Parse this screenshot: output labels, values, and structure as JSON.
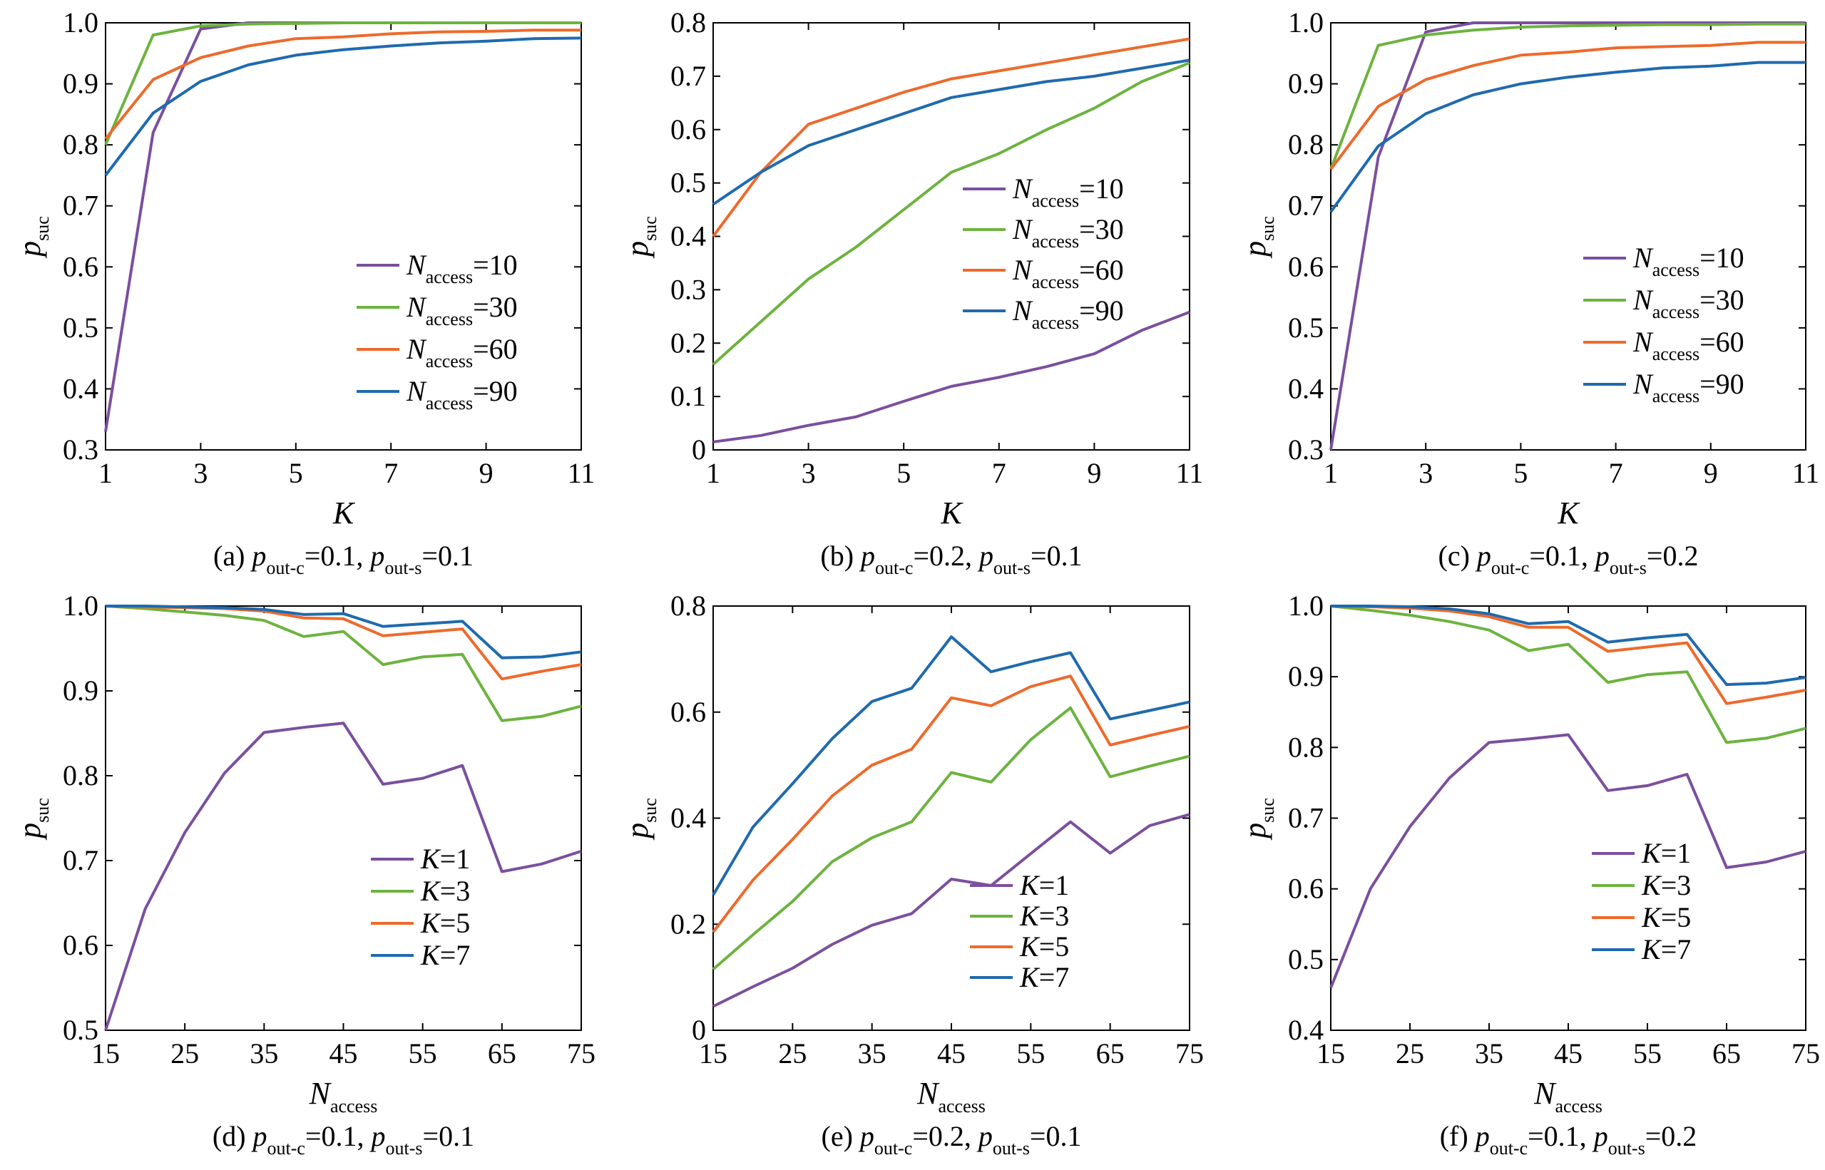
{
  "colors": {
    "purple": "#7B4F9E",
    "green": "#6DB33F",
    "orange": "#EE6A2C",
    "blue": "#1F6AAE"
  },
  "chart_data": [
    {
      "id": "a",
      "type": "line",
      "caption": {
        "prefix": "(a) ",
        "p1": "p",
        "s1": "out-c",
        "v1": "=0.1, ",
        "p2": "p",
        "s2": "out-s",
        "v2": "=0.1"
      },
      "xlabel": {
        "main": "K",
        "sub": ""
      },
      "ylabel": {
        "main": "p",
        "sub": "suc"
      },
      "xlim": [
        1,
        11
      ],
      "ylim": [
        0.3,
        1.0
      ],
      "xticks": [
        1,
        3,
        5,
        7,
        9,
        11
      ],
      "xtick_labels": [
        "1",
        "3",
        "5",
        "7",
        "9",
        "11"
      ],
      "yticks": [
        0.3,
        0.4,
        0.5,
        0.6,
        0.7,
        0.8,
        0.9,
        1.0
      ],
      "ytick_labels": [
        "0.3",
        "0.4",
        "0.5",
        "0.6",
        "0.7",
        "0.8",
        "0.9",
        "1.0"
      ],
      "legend": {
        "placement": "lower-right",
        "label_main": "N",
        "label_sub": "access"
      },
      "x": [
        1,
        2,
        3,
        4,
        5,
        6,
        7,
        8,
        9,
        10,
        11
      ],
      "series": [
        {
          "name": "=10",
          "color": "#7B4F9E",
          "values": [
            0.33,
            0.82,
            0.99,
            1.0,
            1.0,
            1.0,
            1.0,
            1.0,
            1.0,
            1.0,
            1.0
          ]
        },
        {
          "name": "=30",
          "color": "#6DB33F",
          "values": [
            0.8,
            0.98,
            0.995,
            0.998,
            0.999,
            1.0,
            1.0,
            1.0,
            1.0,
            1.0,
            1.0
          ]
        },
        {
          "name": "=60",
          "color": "#EE6A2C",
          "values": [
            0.81,
            0.907,
            0.943,
            0.962,
            0.974,
            0.977,
            0.982,
            0.985,
            0.986,
            0.988,
            0.988
          ]
        },
        {
          "name": "=90",
          "color": "#1F6AAE",
          "values": [
            0.75,
            0.852,
            0.904,
            0.931,
            0.947,
            0.956,
            0.962,
            0.967,
            0.97,
            0.974,
            0.975
          ]
        }
      ]
    },
    {
      "id": "b",
      "type": "line",
      "caption": {
        "prefix": "(b) ",
        "p1": "p",
        "s1": "out-c",
        "v1": "=0.2, ",
        "p2": "p",
        "s2": "out-s",
        "v2": "=0.1"
      },
      "xlabel": {
        "main": "K",
        "sub": ""
      },
      "ylabel": {
        "main": "p",
        "sub": "suc"
      },
      "xlim": [
        1,
        11
      ],
      "ylim": [
        0,
        0.8
      ],
      "xticks": [
        1,
        3,
        5,
        7,
        9,
        11
      ],
      "xtick_labels": [
        "1",
        "3",
        "5",
        "7",
        "9",
        "11"
      ],
      "yticks": [
        0,
        0.1,
        0.2,
        0.3,
        0.4,
        0.5,
        0.6,
        0.7,
        0.8
      ],
      "ytick_labels": [
        "0",
        "0.1",
        "0.2",
        "0.3",
        "0.4",
        "0.5",
        "0.6",
        "0.7",
        "0.8"
      ],
      "legend": {
        "placement": "center-right",
        "label_main": "N",
        "label_sub": "access"
      },
      "x": [
        1,
        2,
        3,
        4,
        5,
        6,
        7,
        8,
        9,
        10,
        11
      ],
      "series": [
        {
          "name": "=10",
          "color": "#7B4F9E",
          "values": [
            0.015,
            0.027,
            0.046,
            0.062,
            0.091,
            0.119,
            0.136,
            0.156,
            0.18,
            0.224,
            0.258
          ]
        },
        {
          "name": "=30",
          "color": "#6DB33F",
          "values": [
            0.16,
            0.24,
            0.32,
            0.38,
            0.45,
            0.52,
            0.555,
            0.6,
            0.64,
            0.69,
            0.725
          ]
        },
        {
          "name": "=60",
          "color": "#EE6A2C",
          "values": [
            0.4,
            0.52,
            0.61,
            0.64,
            0.67,
            0.695,
            0.71,
            0.725,
            0.74,
            0.755,
            0.77
          ]
        },
        {
          "name": "=90",
          "color": "#1F6AAE",
          "values": [
            0.46,
            0.52,
            0.57,
            0.6,
            0.63,
            0.66,
            0.675,
            0.69,
            0.7,
            0.715,
            0.73
          ]
        }
      ]
    },
    {
      "id": "c",
      "type": "line",
      "caption": {
        "prefix": "(c) ",
        "p1": "p",
        "s1": "out-c",
        "v1": "=0.1, ",
        "p2": "p",
        "s2": "out-s",
        "v2": "=0.2"
      },
      "xlabel": {
        "main": "K",
        "sub": ""
      },
      "ylabel": {
        "main": "p",
        "sub": "suc"
      },
      "xlim": [
        1,
        11
      ],
      "ylim": [
        0.3,
        1.0
      ],
      "xticks": [
        1,
        3,
        5,
        7,
        9,
        11
      ],
      "xtick_labels": [
        "1",
        "3",
        "5",
        "7",
        "9",
        "11"
      ],
      "yticks": [
        0.3,
        0.4,
        0.5,
        0.6,
        0.7,
        0.8,
        0.9,
        1.0
      ],
      "ytick_labels": [
        "0.3",
        "0.4",
        "0.5",
        "0.6",
        "0.7",
        "0.8",
        "0.9",
        "1.0"
      ],
      "legend": {
        "placement": "center-right",
        "label_main": "N",
        "label_sub": "access"
      },
      "x": [
        1,
        2,
        3,
        4,
        5,
        6,
        7,
        8,
        9,
        10,
        11
      ],
      "series": [
        {
          "name": "=10",
          "color": "#7B4F9E",
          "values": [
            0.3,
            0.78,
            0.985,
            1.0,
            1.0,
            1.0,
            1.0,
            1.0,
            1.0,
            1.0,
            1.0
          ]
        },
        {
          "name": "=30",
          "color": "#6DB33F",
          "values": [
            0.76,
            0.963,
            0.98,
            0.988,
            0.993,
            0.995,
            0.996,
            0.997,
            0.997,
            0.998,
            0.998
          ]
        },
        {
          "name": "=60",
          "color": "#EE6A2C",
          "values": [
            0.76,
            0.863,
            0.907,
            0.93,
            0.947,
            0.952,
            0.959,
            0.961,
            0.963,
            0.968,
            0.968
          ]
        },
        {
          "name": "=90",
          "color": "#1F6AAE",
          "values": [
            0.69,
            0.798,
            0.851,
            0.882,
            0.9,
            0.911,
            0.919,
            0.926,
            0.929,
            0.935,
            0.935
          ]
        }
      ]
    },
    {
      "id": "d",
      "type": "line",
      "caption": {
        "prefix": "(d) ",
        "p1": "p",
        "s1": "out-c",
        "v1": "=0.1, ",
        "p2": "p",
        "s2": "out-s",
        "v2": "=0.1"
      },
      "xlabel": {
        "main": "N",
        "sub": "access"
      },
      "ylabel": {
        "main": "p",
        "sub": "suc"
      },
      "xlim": [
        15,
        75
      ],
      "ylim": [
        0.5,
        1.0
      ],
      "xticks": [
        15,
        25,
        35,
        45,
        55,
        65,
        75
      ],
      "xtick_labels": [
        "15",
        "25",
        "35",
        "45",
        "55",
        "65",
        "75"
      ],
      "yticks": [
        0.5,
        0.6,
        0.7,
        0.8,
        0.9,
        1.0
      ],
      "ytick_labels": [
        "0.5",
        "0.6",
        "0.7",
        "0.8",
        "0.9",
        "1.0"
      ],
      "legend": {
        "placement": "lower-right",
        "label_main": "K",
        "label_sub": ""
      },
      "x": [
        15,
        20,
        25,
        30,
        35,
        40,
        45,
        50,
        55,
        60,
        65,
        70,
        75
      ],
      "series": [
        {
          "name": "=1",
          "color": "#7B4F9E",
          "values": [
            0.5,
            0.643,
            0.733,
            0.803,
            0.851,
            0.857,
            0.862,
            0.79,
            0.797,
            0.812,
            0.687,
            0.696,
            0.711
          ]
        },
        {
          "name": "=3",
          "color": "#6DB33F",
          "values": [
            1.0,
            0.997,
            0.993,
            0.989,
            0.983,
            0.964,
            0.97,
            0.931,
            0.94,
            0.943,
            0.865,
            0.87,
            0.882
          ]
        },
        {
          "name": "=5",
          "color": "#EE6A2C",
          "values": [
            1.0,
            0.999,
            0.998,
            0.997,
            0.994,
            0.986,
            0.985,
            0.965,
            0.969,
            0.973,
            0.914,
            0.923,
            0.931
          ]
        },
        {
          "name": "=7",
          "color": "#1F6AAE",
          "values": [
            1.0,
            1.0,
            0.999,
            0.998,
            0.996,
            0.99,
            0.991,
            0.976,
            0.979,
            0.982,
            0.939,
            0.94,
            0.946
          ]
        }
      ]
    },
    {
      "id": "e",
      "type": "line",
      "caption": {
        "prefix": "(e) ",
        "p1": "p",
        "s1": "out-c",
        "v1": "=0.2, ",
        "p2": "p",
        "s2": "out-s",
        "v2": "=0.1"
      },
      "xlabel": {
        "main": "N",
        "sub": "access"
      },
      "ylabel": {
        "main": "p",
        "sub": "suc"
      },
      "xlim": [
        15,
        75
      ],
      "ylim": [
        0,
        0.8
      ],
      "xticks": [
        15,
        25,
        35,
        45,
        55,
        65,
        75
      ],
      "xtick_labels": [
        "15",
        "25",
        "35",
        "45",
        "55",
        "65",
        "75"
      ],
      "yticks": [
        0,
        0.2,
        0.4,
        0.6,
        0.8
      ],
      "ytick_labels": [
        "0",
        "0.2",
        "0.4",
        "0.6",
        "0.8"
      ],
      "legend": {
        "placement": "lower-right",
        "label_main": "K",
        "label_sub": ""
      },
      "x": [
        15,
        20,
        25,
        30,
        35,
        40,
        45,
        50,
        55,
        60,
        65,
        70,
        75
      ],
      "series": [
        {
          "name": "=1",
          "color": "#7B4F9E",
          "values": [
            0.045,
            0.082,
            0.117,
            0.162,
            0.198,
            0.22,
            0.285,
            0.273,
            0.333,
            0.393,
            0.334,
            0.386,
            0.407
          ]
        },
        {
          "name": "=3",
          "color": "#6DB33F",
          "values": [
            0.115,
            0.18,
            0.243,
            0.318,
            0.363,
            0.393,
            0.486,
            0.468,
            0.548,
            0.608,
            0.478,
            0.498,
            0.517
          ]
        },
        {
          "name": "=5",
          "color": "#EE6A2C",
          "values": [
            0.185,
            0.283,
            0.36,
            0.442,
            0.5,
            0.53,
            0.627,
            0.612,
            0.648,
            0.668,
            0.538,
            0.556,
            0.573
          ]
        },
        {
          "name": "=7",
          "color": "#1F6AAE",
          "values": [
            0.255,
            0.383,
            0.465,
            0.55,
            0.62,
            0.645,
            0.742,
            0.676,
            0.695,
            0.712,
            0.587,
            0.603,
            0.619
          ]
        }
      ]
    },
    {
      "id": "f",
      "type": "line",
      "caption": {
        "prefix": "(f) ",
        "p1": "p",
        "s1": "out-c",
        "v1": "=0.1, ",
        "p2": "p",
        "s2": "out-s",
        "v2": "=0.2"
      },
      "xlabel": {
        "main": "N",
        "sub": "access"
      },
      "ylabel": {
        "main": "p",
        "sub": "suc"
      },
      "xlim": [
        15,
        75
      ],
      "ylim": [
        0.4,
        1.0
      ],
      "xticks": [
        15,
        25,
        35,
        45,
        55,
        65,
        75
      ],
      "xtick_labels": [
        "15",
        "25",
        "35",
        "45",
        "55",
        "65",
        "75"
      ],
      "yticks": [
        0.4,
        0.5,
        0.6,
        0.7,
        0.8,
        0.9,
        1.0
      ],
      "ytick_labels": [
        "0.4",
        "0.5",
        "0.6",
        "0.7",
        "0.8",
        "0.9",
        "1.0"
      ],
      "legend": {
        "placement": "lower-right",
        "label_main": "K",
        "label_sub": ""
      },
      "x": [
        15,
        20,
        25,
        30,
        35,
        40,
        45,
        50,
        55,
        60,
        65,
        70,
        75
      ],
      "series": [
        {
          "name": "=1",
          "color": "#7B4F9E",
          "values": [
            0.46,
            0.6,
            0.688,
            0.757,
            0.807,
            0.812,
            0.818,
            0.739,
            0.746,
            0.762,
            0.63,
            0.638,
            0.653
          ]
        },
        {
          "name": "=3",
          "color": "#6DB33F",
          "values": [
            1.0,
            0.994,
            0.987,
            0.978,
            0.966,
            0.937,
            0.946,
            0.892,
            0.903,
            0.907,
            0.807,
            0.813,
            0.827
          ]
        },
        {
          "name": "=5",
          "color": "#EE6A2C",
          "values": [
            1.0,
            0.999,
            0.997,
            0.993,
            0.985,
            0.97,
            0.97,
            0.936,
            0.942,
            0.948,
            0.862,
            0.871,
            0.881
          ]
        },
        {
          "name": "=7",
          "color": "#1F6AAE",
          "values": [
            1.0,
            1.0,
            0.999,
            0.996,
            0.989,
            0.975,
            0.978,
            0.949,
            0.955,
            0.96,
            0.889,
            0.891,
            0.899
          ]
        }
      ]
    }
  ]
}
